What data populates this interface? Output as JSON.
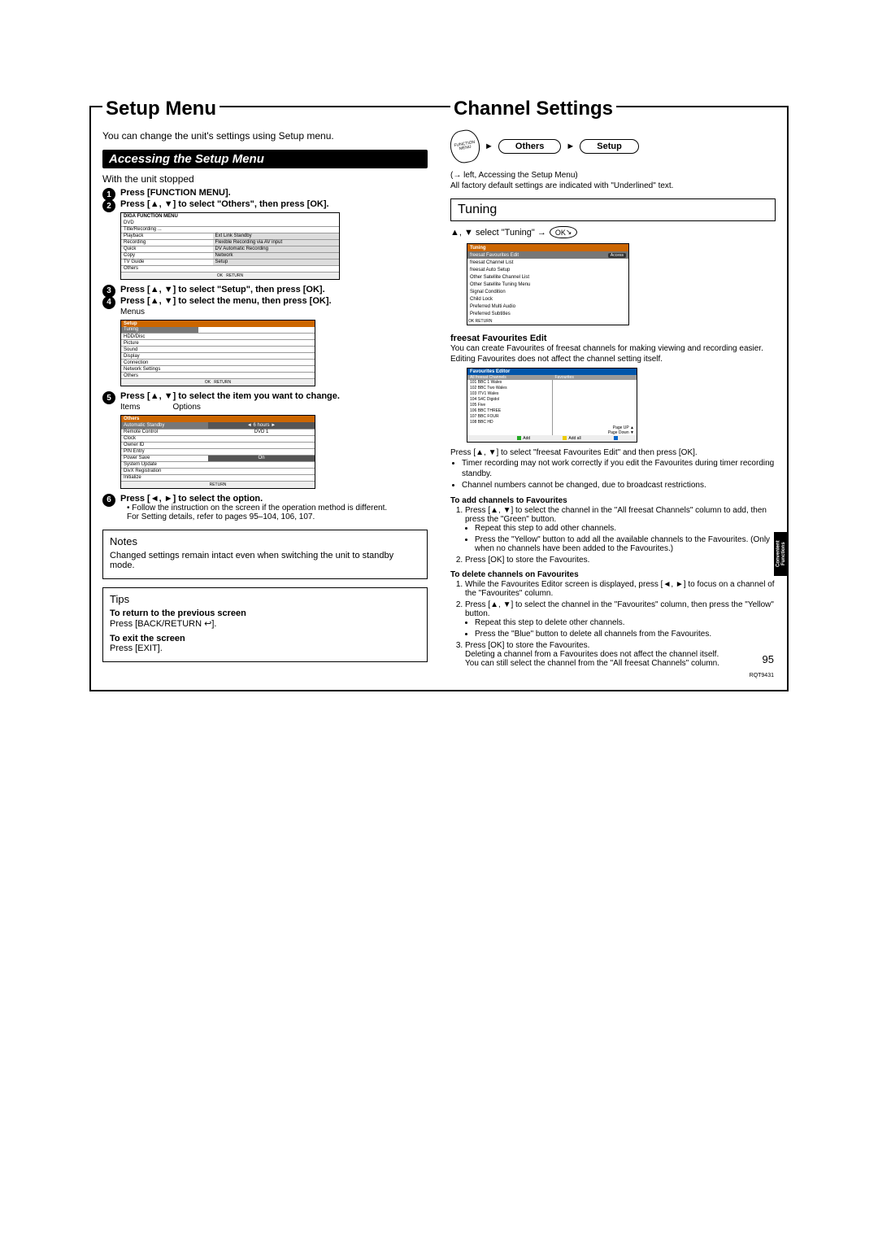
{
  "page": {
    "number": "95",
    "code": "RQT9431"
  },
  "side_tab": "Convenient\nFunctions",
  "left": {
    "title": "Setup Menu",
    "intro": "You can change the unit's settings using Setup menu.",
    "band": "Accessing the Setup Menu",
    "precond": "With the unit stopped",
    "steps": {
      "s1": "Press [FUNCTION MENU].",
      "s2": "Press [▲, ▼] to select \"Others\", then press [OK].",
      "s3": "Press [▲, ▼] to select \"Setup\", then press [OK].",
      "s4": "Press [▲, ▼] to select the menu, then press [OK].",
      "s5": "Press [▲, ▼] to select the item you want to change.",
      "s6": "Press [◄, ►] to select the option.",
      "s6_note": "Follow the instruction on the screen if the operation method is different.",
      "s6_ref": "For Setting details, refer to pages 95–104, 106, 107."
    },
    "menus_label": "Menus",
    "items_label": "Items",
    "options_label": "Options",
    "setup_menu": {
      "head": "Setup",
      "rows": [
        "Tuning",
        "HDD/Disc",
        "Picture",
        "Sound",
        "Display",
        "Connection",
        "Network Settings",
        "Others"
      ]
    },
    "others_menu": {
      "head": "Others",
      "rows": [
        [
          "Automatic Standby",
          "◄ 6 hours ►"
        ],
        [
          "Remote Control",
          "DVD 1"
        ],
        [
          "Clock",
          ""
        ],
        [
          "Owner ID",
          ""
        ],
        [
          "PIN Entry",
          ""
        ],
        [
          "Power Save",
          "On"
        ],
        [
          "System Update",
          ""
        ],
        [
          "DivX Registration",
          ""
        ],
        [
          "Initialize",
          ""
        ]
      ]
    },
    "fn_menu": {
      "rows_left": [
        "DVD",
        "Title/Recording ...",
        "Playback",
        "Recording",
        "Quick",
        "Copy",
        "TV Guide",
        "Others"
      ],
      "rows_right": [
        "",
        "",
        "Ext Link Standby",
        "Flexible Recording via AV input",
        "DV Automatic Recording",
        "Network",
        "Setup",
        ""
      ]
    },
    "notes": {
      "title": "Notes",
      "body": "Changed settings remain intact even when switching the unit to standby mode."
    },
    "tips": {
      "title": "Tips",
      "l1_b": "To return to the previous screen",
      "l1": "Press [BACK/RETURN ↩].",
      "l2_b": "To exit the screen",
      "l2": "Press [EXIT]."
    }
  },
  "right": {
    "title": "Channel Settings",
    "pill1": "Others",
    "pill2": "Setup",
    "fn_label": "FUNCTION MENU",
    "ref1": "(→ left, Accessing the Setup Menu)",
    "ref2": "All factory default settings are indicated with \"Underlined\" text.",
    "tuning_title": "Tuning",
    "tuning_line_a": "▲, ▼ select \"Tuning\" →",
    "ok": "OK",
    "tuning_menu": {
      "head": "Tuning",
      "rows": [
        "freesat Favourites Edit",
        "freesat Channel List",
        "freesat Auto Setup",
        "Other Satellite Channel List",
        "Other Satellite Tuning Menu",
        "Signal Condition",
        "Child Lock",
        "Preferred Multi Audio",
        "Preferred Subtitles"
      ],
      "access": "Access",
      "foot": "OK     RETURN"
    },
    "ffe": {
      "title": "freesat Favourites Edit",
      "intro": "You can create Favourites of freesat channels for making viewing and recording easier. Editing Favourites does not affect the channel setting itself.",
      "shot_head": "Favourites Editor",
      "left_th": "All freesat Channels",
      "right_th": "Favourites",
      "channels": [
        "101 BBC 1 Wales",
        "102 BBC Two Wales",
        "103 ITV1 Wales",
        "104 S4C Digidol",
        "105 Five",
        "106 BBC THREE",
        "107 BBC FOUR",
        "108 BBC HD"
      ],
      "foot_add": "Add",
      "foot_addall": "Add all",
      "foot_pu": "Page UP ▲",
      "foot_pd": "Page Down ▼",
      "press": "Press [▲, ▼] to select \"freesat Favourites Edit\" and then press [OK].",
      "bul1": "Timer recording may not work correctly if you edit the Favourites during timer recording standby.",
      "bul2": "Channel numbers cannot be changed, due to broadcast restrictions.",
      "add_t": "To add channels to Favourites",
      "add1": "Press [▲, ▼] to select the channel in the \"All freesat Channels\" column to add, then press the \"Green\" button.",
      "add1a": "Repeat this step to add other channels.",
      "add1b": "Press the \"Yellow\" button to add all the available channels to the Favourites. (Only when no channels have been added to the Favourites.)",
      "add2": "Press [OK] to store the Favourites.",
      "del_t": "To delete channels on Favourites",
      "del1": "While the Favourites Editor screen is displayed, press [◄, ►] to focus on a channel of the \"Favourites\" column.",
      "del2": "Press [▲, ▼] to select the channel in the \"Favourites\" column, then press the \"Yellow\" button.",
      "del2a": "Repeat this step to delete other channels.",
      "del2b": "Press the \"Blue\" button to delete all channels from the Favourites.",
      "del3": "Press [OK] to store the Favourites.",
      "del_note1": "Deleting a channel from a Favourites does not affect the channel itself.",
      "del_note2": "You can still select the channel from the \"All freesat Channels\" column."
    }
  }
}
